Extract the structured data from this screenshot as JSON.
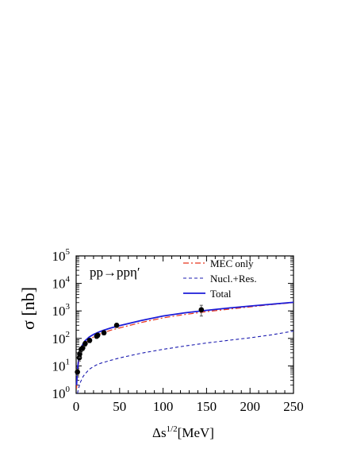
{
  "chart_data": {
    "type": "line",
    "annotation": "pp→ppη′",
    "xlabel": "Δs^{1/2}[MeV]",
    "ylabel": "σ [nb]",
    "xlim": [
      0,
      250
    ],
    "ylim": [
      1,
      100000
    ],
    "y_scale": "log",
    "grid": false,
    "legend_placement": "top-right",
    "x_ticks": [
      "0",
      "50",
      "100",
      "150",
      "200",
      "250"
    ],
    "y_ticks": [
      {
        "base": "10",
        "exp": "0",
        "value": 1
      },
      {
        "base": "10",
        "exp": "1",
        "value": 10
      },
      {
        "base": "10",
        "exp": "2",
        "value": 100
      },
      {
        "base": "10",
        "exp": "3",
        "value": 1000
      },
      {
        "base": "10",
        "exp": "4",
        "value": 10000
      },
      {
        "base": "10",
        "exp": "5",
        "value": 100000
      }
    ],
    "series": [
      {
        "name": "MEC only",
        "color": "#e8341c",
        "dash": "dash-dot",
        "x": [
          0.5,
          1.5,
          3,
          5,
          8,
          10,
          15,
          20,
          25,
          30,
          40,
          50,
          75,
          100,
          125,
          150,
          175,
          200,
          225,
          250
        ],
        "y": [
          1.5,
          5,
          14,
          30,
          50,
          62,
          88,
          112,
          135,
          155,
          200,
          240,
          380,
          560,
          740,
          940,
          1150,
          1400,
          1700,
          2000
        ]
      },
      {
        "name": "Nucl.+Res.",
        "color": "#1c1cb0",
        "dash": "dashed",
        "x": [
          1.5,
          3,
          5,
          8,
          10,
          15,
          20,
          25,
          30,
          40,
          50,
          75,
          100,
          125,
          150,
          175,
          200,
          225,
          250
        ],
        "y": [
          1,
          1.6,
          2.6,
          4.1,
          5,
          7.5,
          9.5,
          11.5,
          13,
          16,
          19.5,
          29,
          40,
          53,
          68,
          85,
          105,
          135,
          185
        ]
      },
      {
        "name": "Total",
        "color": "#1c1cd8",
        "dash": "solid",
        "x": [
          0.5,
          1.5,
          3,
          5,
          8,
          10,
          15,
          20,
          25,
          30,
          40,
          50,
          75,
          100,
          125,
          150,
          175,
          200,
          225,
          250
        ],
        "y": [
          2,
          7,
          20,
          40,
          65,
          80,
          112,
          140,
          165,
          190,
          240,
          290,
          450,
          650,
          850,
          1050,
          1270,
          1500,
          1760,
          2050
        ]
      }
    ],
    "data_points": {
      "x": [
        1.5,
        3.7,
        4.1,
        5.8,
        7.6,
        10.4,
        15.5,
        23.6,
        24.8,
        32,
        46.6,
        144
      ],
      "y": [
        6,
        20,
        27,
        40,
        45,
        65,
        85,
        120,
        130,
        160,
        300,
        1100
      ],
      "y_err_low": [
        4.5,
        15,
        20,
        32,
        36,
        52,
        70,
        100,
        108,
        135,
        250,
        650
      ],
      "y_err_high": [
        7.5,
        25,
        34,
        48,
        54,
        78,
        100,
        140,
        152,
        185,
        350,
        1600
      ]
    }
  }
}
